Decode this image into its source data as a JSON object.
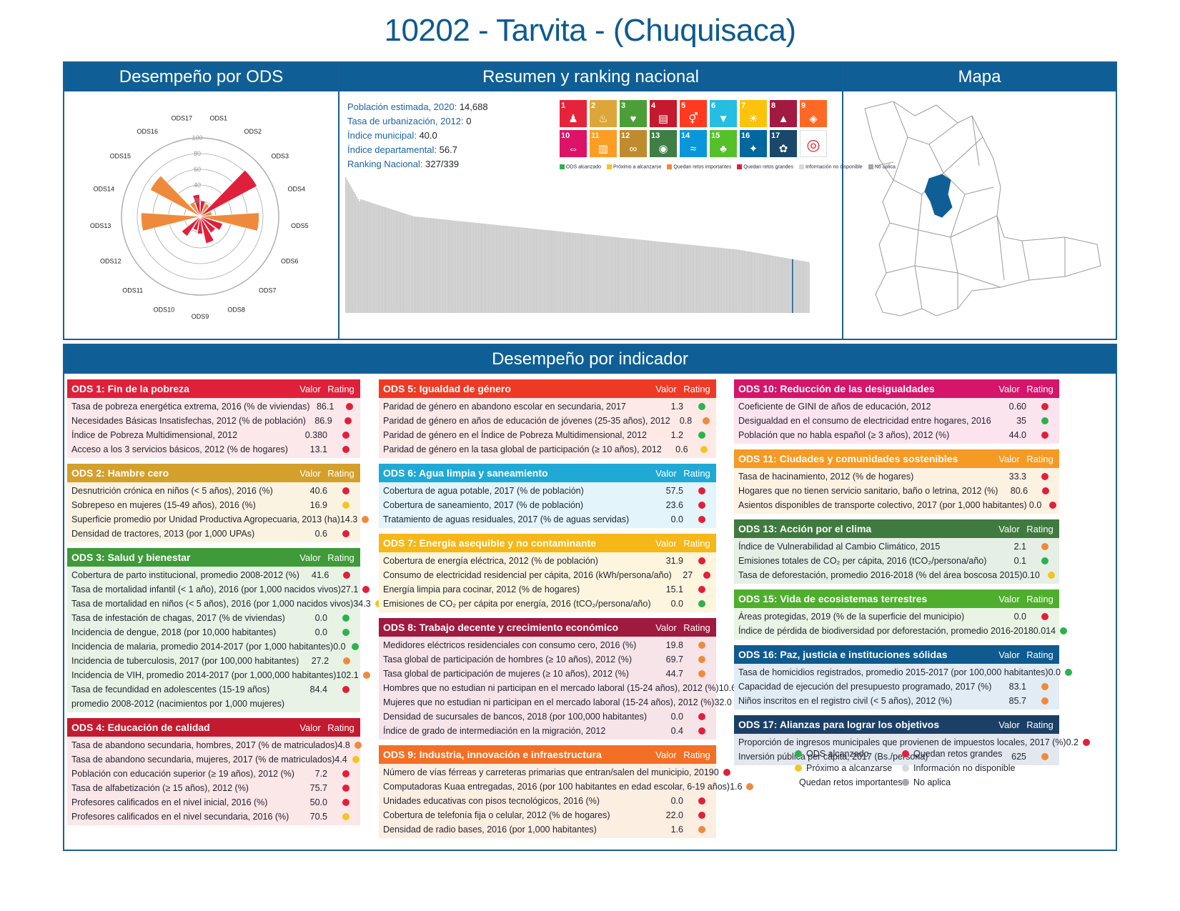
{
  "title": "10202 - Tarvita - (Chuquisaca)",
  "colors": {
    "green": "#2bb24c",
    "yellow": "#f2c521",
    "orange": "#ef8a3c",
    "red": "#e0203a",
    "lightgray": "#d9d9d9",
    "gray": "#a6a6a6",
    "band": "#0f5f96"
  },
  "sections": {
    "ods": "Desempeño por ODS",
    "resumen": "Resumen y ranking nacional",
    "mapa": "Mapa",
    "indicador": "Desempeño por indicador"
  },
  "stats": [
    {
      "label": "Población estimada, 2020:",
      "value": "14,688"
    },
    {
      "label": "Tasa de urbanización, 2012:",
      "value": "0"
    },
    {
      "label": "Índice municipal:",
      "value": "40.0"
    },
    {
      "label": "Índice departamental:",
      "value": "56.7"
    },
    {
      "label": "Ranking Nacional:",
      "value": "327/339"
    }
  ],
  "sdg_tiles": [
    {
      "n": "1",
      "color": "#e5243b",
      "icon": "♟"
    },
    {
      "n": "2",
      "color": "#dda63a",
      "icon": "♨"
    },
    {
      "n": "3",
      "color": "#4c9f38",
      "icon": "♥"
    },
    {
      "n": "4",
      "color": "#c5192d",
      "icon": "▤"
    },
    {
      "n": "5",
      "color": "#ff3a21",
      "icon": "⚥"
    },
    {
      "n": "6",
      "color": "#26bde2",
      "icon": "▼"
    },
    {
      "n": "7",
      "color": "#fcc30b",
      "icon": "☀"
    },
    {
      "n": "8",
      "color": "#a21942",
      "icon": "▲"
    },
    {
      "n": "9",
      "color": "#fd6925",
      "icon": "◈"
    },
    {
      "n": "10",
      "color": "#dd1367",
      "icon": "⇔"
    },
    {
      "n": "11",
      "color": "#fd9d24",
      "icon": "▥"
    },
    {
      "n": "12",
      "color": "#bf8b2e",
      "icon": "∞"
    },
    {
      "n": "13",
      "color": "#3f7e44",
      "icon": "◉"
    },
    {
      "n": "14",
      "color": "#0a97d9",
      "icon": "≈"
    },
    {
      "n": "15",
      "color": "#56c02b",
      "icon": "♣"
    },
    {
      "n": "16",
      "color": "#00689d",
      "icon": "✦"
    },
    {
      "n": "17",
      "color": "#19486a",
      "icon": "✿"
    },
    {
      "n": "",
      "color": "#ffffff",
      "icon": "◎"
    }
  ],
  "sdg_legend": [
    {
      "label": "ODS alcanzado",
      "color": "#2bb24c"
    },
    {
      "label": "Próximo a alcanzarse",
      "color": "#f2c521"
    },
    {
      "label": "Quedan retos importantes",
      "color": "#ef8a3c"
    },
    {
      "label": "Quedan retos grandes",
      "color": "#e0203a"
    },
    {
      "label": "Información no disponible",
      "color": "#d9d9d9"
    },
    {
      "label": "No aplica",
      "color": "#a6a6a6"
    }
  ],
  "chart_data": {
    "type": "bar",
    "categories": [
      "ODS1",
      "ODS2",
      "ODS3",
      "ODS4",
      "ODS5",
      "ODS6",
      "ODS7",
      "ODS8",
      "ODS9",
      "ODS10",
      "ODS11",
      "ODS12",
      "ODS13",
      "ODS14",
      "ODS15",
      "ODS16",
      "ODS17"
    ],
    "values": [
      20,
      18,
      82,
      15,
      75,
      30,
      25,
      35,
      22,
      18,
      30,
      0,
      75,
      0,
      72,
      20,
      28
    ],
    "value_colors": [
      "red",
      "orange",
      "red",
      "orange",
      "orange",
      "red",
      "red",
      "red",
      "red",
      "red",
      "red",
      "none",
      "orange",
      "none",
      "orange",
      "orange",
      "red"
    ],
    "rlim": [
      0,
      100
    ],
    "rticks": [
      "20",
      "40",
      "60",
      "80",
      "100"
    ],
    "ranking": {
      "total": 339,
      "position": 327
    }
  },
  "legend": [
    {
      "label": "ODS alcanzado",
      "color": "#2bb24c"
    },
    {
      "label": "Quedan retos grandes",
      "color": "#e0203a"
    },
    {
      "label": "Próximo a alcanzarse",
      "color": "#f2c521"
    },
    {
      "label": "Información no disponible",
      "color": "#d9d9d9"
    },
    {
      "label": "Quedan retos importantes",
      "color": "#ef8a3c"
    },
    {
      "label": "No aplica",
      "color": "#a6a6a6"
    }
  ],
  "headers": {
    "valor": "Valor",
    "rating": "Rating"
  },
  "cards": [
    {
      "col": 0,
      "title": "ODS 1: Fin de la pobreza",
      "hc": "#e0203a",
      "bg": "#fce8ea",
      "rows": [
        [
          "Tasa de pobreza energética extrema, 2016 (% de viviendas)",
          "86.1",
          "red"
        ],
        [
          "Necesidades Básicas Insatisfechas, 2012 (% de población)",
          "86.9",
          "red"
        ],
        [
          "Índice de Pobreza Multidimensional, 2012",
          "0.380",
          "red"
        ],
        [
          "Acceso a los 3 servicios básicos, 2012 (% de hogares)",
          "13.1",
          "red"
        ]
      ]
    },
    {
      "col": 0,
      "title": "ODS 2: Hambre cero",
      "hc": "#d4a02c",
      "bg": "#fbf3e2",
      "rows": [
        [
          "Desnutrición crónica en niños (< 5 años), 2016 (%)",
          "40.6",
          "red"
        ],
        [
          "Sobrepeso en mujeres (15-49 años), 2016 (%)",
          "16.9",
          "yellow"
        ],
        [
          "Superficie promedio por Unidad Productiva Agropecuaria, 2013 (ha)",
          "14.3",
          "orange"
        ],
        [
          "Densidad de tractores, 2013 (por 1,000 UPAs)",
          "0.6",
          "red"
        ]
      ]
    },
    {
      "col": 0,
      "title": "ODS 3: Salud y bienestar",
      "hc": "#3f9a3a",
      "bg": "#e8f3e5",
      "rows": [
        [
          "Cobertura de parto institucional, promedio 2008-2012 (%)",
          "41.6",
          "red"
        ],
        [
          "Tasa de mortalidad infantil (< 1 año), 2016 (por 1,000 nacidos vivos)",
          "27.1",
          "red"
        ],
        [
          "Tasa de mortalidad en niños (< 5 años), 2016 (por 1,000 nacidos vivos)",
          "34.3",
          "yellow"
        ],
        [
          "Tasa de infestación de chagas, 2017 (% de viviendas)",
          "0.0",
          "green"
        ],
        [
          "Incidencia de dengue, 2018 (por 10,000 habitantes)",
          "0.0",
          "green"
        ],
        [
          "Incidencia de malaria, promedio 2014-2017 (por 1,000 habitantes)",
          "0.0",
          "green"
        ],
        [
          "Incidencia de tuberculosis, 2017 (por 100,000 habitantes)",
          "27.2",
          "orange"
        ],
        [
          "Incidencia de VIH, promedio 2014-2017 (por 1,000,000 habitantes)",
          "102.1",
          "orange"
        ],
        [
          "Tasa de fecundidad en adolescentes (15-19 años) promedio 2008-2012 (nacimientos por 1,000 mujeres)",
          "84.4",
          "red"
        ]
      ]
    },
    {
      "col": 0,
      "title": "ODS 4: Educación de calidad",
      "hc": "#c41a2f",
      "bg": "#fbe6e8",
      "rows": [
        [
          "Tasa de abandono secundaria, hombres, 2017 (% de matriculados)",
          "4.8",
          "orange"
        ],
        [
          "Tasa de abandono secundaria, mujeres, 2017 (% de matriculados)",
          "4.4",
          "yellow"
        ],
        [
          "Población con educación superior (≥ 19 años), 2012 (%)",
          "7.2",
          "red"
        ],
        [
          "Tasa de alfabetización (≥ 15 años), 2012 (%)",
          "75.7",
          "red"
        ],
        [
          "Profesores calificados en el nivel inicial, 2016 (%)",
          "50.0",
          "red"
        ],
        [
          "Profesores calificados en el nivel secundaria, 2016 (%)",
          "70.5",
          "yellow"
        ]
      ]
    },
    {
      "col": 1,
      "title": "ODS 5: Igualdad de género",
      "hc": "#ee3a25",
      "bg": "#fde9e6",
      "rows": [
        [
          "Paridad de género en abandono escolar en secundaria, 2017",
          "1.3",
          "green"
        ],
        [
          "Paridad de género en años de educación de jóvenes (25-35 años), 2012",
          "0.8",
          "orange"
        ],
        [
          "Paridad de género en el Índice de Pobreza Multidimensional, 2012",
          "1.2",
          "green"
        ],
        [
          "Paridad de género en la tasa global de participación (≥ 10 años), 2012",
          "0.6",
          "yellow"
        ]
      ]
    },
    {
      "col": 1,
      "title": "ODS 6: Agua limpia y saneamiento",
      "hc": "#21a9d6",
      "bg": "#e3f4fa",
      "rows": [
        [
          "Cobertura de agua potable, 2017 (% de población)",
          "57.5",
          "red"
        ],
        [
          "Cobertura de saneamiento, 2017 (% de población)",
          "23.6",
          "red"
        ],
        [
          "Tratamiento de aguas residuales, 2017 (% de aguas servidas)",
          "0.0",
          "red"
        ]
      ]
    },
    {
      "col": 1,
      "title": "ODS 7: Energía asequible y no contaminante",
      "hc": "#f5b818",
      "bg": "#fdf5de",
      "rows": [
        [
          "Cobertura de energía eléctrica, 2012 (% de población)",
          "31.9",
          "red"
        ],
        [
          "Consumo de electricidad residencial per cápita, 2016 (kWh/persona/año)",
          "27",
          "red"
        ],
        [
          "Energía limpia para cocinar, 2012 (% de hogares)",
          "15.1",
          "red"
        ],
        [
          "Emisiones de CO₂ per cápita por energía, 2016 (tCO₂/persona/año)",
          "0.0",
          "green"
        ]
      ]
    },
    {
      "col": 1,
      "title": "ODS 8: Trabajo decente y crecimiento económico",
      "hc": "#a0193f",
      "bg": "#f6e4e9",
      "rows": [
        [
          "Medidores eléctricos residenciales con consumo cero, 2016 (%)",
          "19.8",
          "orange"
        ],
        [
          "Tasa global de participación de hombres (≥ 10 años), 2012 (%)",
          "69.7",
          "orange"
        ],
        [
          "Tasa global de participación de mujeres (≥ 10 años), 2012 (%)",
          "44.7",
          "orange"
        ],
        [
          "Hombres que no estudian ni participan en el mercado laboral (15-24 años), 2012 (%)",
          "10.6",
          "yellow"
        ],
        [
          "Mujeres que no estudian ni participan en el mercado laboral (15-24 años), 2012 (%)",
          "32.0",
          "red"
        ],
        [
          "Densidad de sucursales de bancos, 2018 (por 100,000 habitantes)",
          "0.0",
          "red"
        ],
        [
          "Índice de grado de intermediación en la migración, 2012",
          "0.4",
          "red"
        ]
      ]
    },
    {
      "col": 1,
      "title": "ODS 9: Industria, innovación e infraestructura",
      "hc": "#f36f25",
      "bg": "#fdeee2",
      "rows": [
        [
          "Número de vías férreas y carreteras primarias que entran/salen del municipio, 2019",
          "0",
          "red"
        ],
        [
          "Computadoras Kuaa entregadas, 2016 (por 100 habitantes en edad escolar, 6-19 años)",
          "1.6",
          "orange"
        ],
        [
          "Unidades educativas con pisos tecnológicos, 2016 (%)",
          "0.0",
          "red"
        ],
        [
          "Cobertura de telefonía fija o celular, 2012 (% de hogares)",
          "22.0",
          "red"
        ],
        [
          "Densidad de radio bases, 2016 (por 1,000 habitantes)",
          "1.6",
          "orange"
        ]
      ]
    },
    {
      "col": 2,
      "title": "ODS 10: Reducción de las desigualdades",
      "hc": "#d5146a",
      "bg": "#fbe4ee",
      "rows": [
        [
          "Coeficiente de GINI de años de educación, 2012",
          "0.60",
          "red"
        ],
        [
          "Desigualdad en el consumo de electricidad entre hogares, 2016",
          "35",
          "green"
        ],
        [
          "Población que no habla español (≥ 3 años), 2012 (%)",
          "44.0",
          "red"
        ]
      ]
    },
    {
      "col": 2,
      "title": "ODS 11: Ciudades y comunidades sostenibles",
      "hc": "#f59a25",
      "bg": "#fdf1e1",
      "rows": [
        [
          "Tasa de hacinamiento, 2012 (% de hogares)",
          "33.3",
          "red"
        ],
        [
          "Hogares que no tienen servicio sanitario, baño o letrina, 2012 (%)",
          "80.6",
          "red"
        ],
        [
          "Asientos disponibles de transporte colectivo, 2017 (por 1,000 habitantes)",
          "0.0",
          "red"
        ]
      ]
    },
    {
      "col": 2,
      "title": "ODS 13: Acción por el clima",
      "hc": "#3f7a3f",
      "bg": "#e6efe5",
      "rows": [
        [
          "Índice de Vulnerabilidad al Cambio Climático, 2015",
          "2.1",
          "orange"
        ],
        [
          "Emisiones totales de CO₂ per cápita, 2016 (tCO₂/persona/año)",
          "0.1",
          "green"
        ],
        [
          "Tasa de deforestación, promedio 2016-2018 (% del área boscosa 2015)",
          "0.10",
          "yellow"
        ]
      ]
    },
    {
      "col": 2,
      "title": "ODS 15: Vida de ecosistemas terrestres",
      "hc": "#4fae2e",
      "bg": "#e9f4e4",
      "rows": [
        [
          "Áreas protegidas, 2019 (% de la superficie del municipio)",
          "0.0",
          "red"
        ],
        [
          "Índice de pérdida de biodiversidad por deforestación, promedio 2016-2018",
          "0.014",
          "green"
        ]
      ]
    },
    {
      "col": 2,
      "title": "ODS 16: Paz, justicia e instituciones sólidas",
      "hc": "#0f5a8f",
      "bg": "#e2ecf4",
      "rows": [
        [
          "Tasa de homicidios registrados, promedio 2015-2017 (por 100,000 habitantes)",
          "0.0",
          "green"
        ],
        [
          "Capacidad de ejecución del presupuesto programado, 2017 (%)",
          "83.1",
          "orange"
        ],
        [
          "Niños inscritos en el registro civil (< 5 años), 2012 (%)",
          "85.7",
          "orange"
        ]
      ]
    },
    {
      "col": 2,
      "title": "ODS 17: Alianzas para lograr los objetivos",
      "hc": "#1b3f65",
      "bg": "#e3e8ef",
      "rows": [
        [
          "Proporción de ingresos municipales que provienen de impuestos locales, 2017 (%)",
          "0.2",
          "red"
        ],
        [
          "Inversión pública per cápita, 2017 (Bs./persona)",
          "625",
          "orange"
        ]
      ]
    }
  ]
}
